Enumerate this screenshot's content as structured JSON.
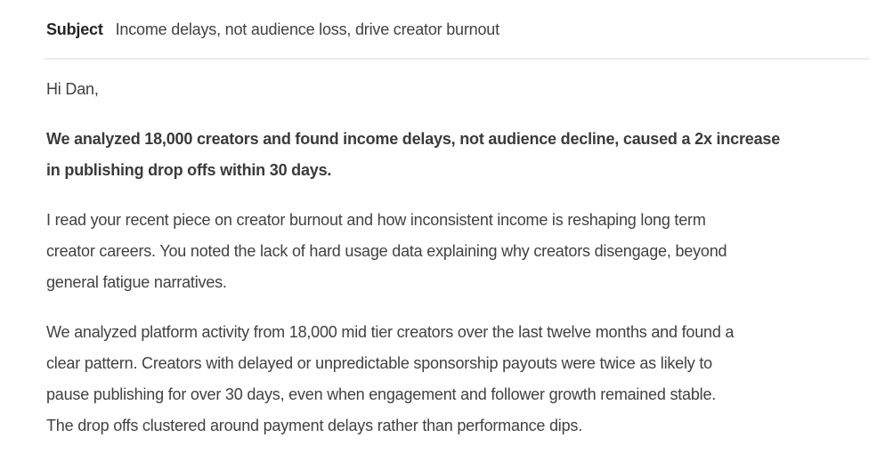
{
  "email": {
    "subject_label": "Subject",
    "subject_value": "Income delays, not audience loss, drive creator burnout",
    "body": {
      "greeting": "Hi Dan,",
      "paragraphs": [
        {
          "bold": true,
          "lines": [
            "We analyzed 18,000 creators and found income delays, not audience decline, caused a 2x increase",
            "in publishing drop offs within 30 days."
          ]
        },
        {
          "bold": false,
          "lines": [
            "I read your recent piece on creator burnout and how inconsistent income is reshaping long term",
            "creator careers. You noted the lack of hard usage data explaining why creators disengage, beyond",
            "general fatigue narratives."
          ]
        },
        {
          "bold": false,
          "lines": [
            "We analyzed platform activity from 18,000 mid tier creators over the last twelve months and found a",
            "clear pattern. Creators with delayed or unpredictable sponsorship payouts were twice as likely to",
            "pause publishing for over 30 days, even when engagement and follower growth remained stable.",
            "The drop offs clustered around payment delays rather than performance dips."
          ]
        }
      ]
    },
    "colors": {
      "background": "#ffffff",
      "subject_label_text": "#242424",
      "subject_value_text": "#424242",
      "body_text": "#414141",
      "bold_text": "#3a3a3a",
      "divider": "#ececec"
    }
  }
}
